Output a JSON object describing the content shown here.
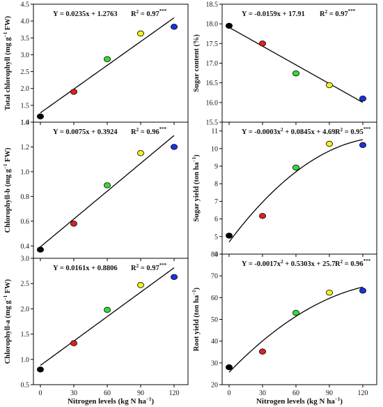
{
  "colors": {
    "point_0": "#000000",
    "point_30": "#e02020",
    "point_60": "#33dd33",
    "point_90": "#f4f020",
    "point_120": "#1a33dd",
    "line": "#000000"
  },
  "x_axis_label": {
    "main": "Nitrogen levels (kg N ha",
    "exp": "−1",
    "close": ")"
  },
  "chart_data": [
    {
      "id": "total-chlorophyll",
      "type": "scatter",
      "fit": "linear",
      "coef": [
        1.2763,
        0.0235
      ],
      "ylabel": {
        "main": "Total chlorophyll (mg g",
        "exp": "−1",
        "close": " FW)"
      },
      "equation": {
        "parts": [
          "Y = 0.0235x + 1.2763"
        ]
      },
      "r2": {
        "label": "R",
        "sup": "2",
        "rest": " = 0.97",
        "stars": "***"
      },
      "xlim": [
        0,
        120
      ],
      "ylim": [
        1.0,
        4.5
      ],
      "xticks": [
        0,
        30,
        60,
        90,
        120
      ],
      "yticks": [
        "1.0",
        "1.5",
        "2.0",
        "2.5",
        "3.0",
        "3.5",
        "4.0",
        "4.5"
      ],
      "x": [
        0,
        30,
        60,
        90,
        120
      ],
      "y": [
        1.17,
        1.9,
        2.87,
        3.63,
        3.83
      ]
    },
    {
      "id": "sugar-content",
      "type": "scatter",
      "fit": "linear",
      "coef": [
        17.91,
        -0.0159
      ],
      "ylabel": {
        "main": "Sugar content (%)",
        "exp": "",
        "close": ""
      },
      "equation": {
        "parts": [
          "Y = -0.0159x + 17.91"
        ]
      },
      "r2": {
        "label": "R",
        "sup": "2",
        "rest": " = 0.97",
        "stars": "***"
      },
      "xlim": [
        0,
        120
      ],
      "ylim": [
        15.5,
        18.5
      ],
      "xticks": [
        0,
        30,
        60,
        90,
        120
      ],
      "yticks": [
        "15.5",
        "16.0",
        "16.5",
        "17.0",
        "17.5",
        "18.0",
        "18.5"
      ],
      "x": [
        0,
        30,
        60,
        90,
        120
      ],
      "y": [
        17.95,
        17.5,
        16.74,
        16.44,
        16.1
      ]
    },
    {
      "id": "chlorophyll-b",
      "type": "scatter",
      "fit": "linear",
      "coef": [
        0.3924,
        0.0075
      ],
      "ylabel": {
        "main": "Chlorophyll-b (mg g",
        "exp": "−1",
        "close": " FW)"
      },
      "equation": {
        "parts": [
          "Y = 0.0075x + 0.3924"
        ]
      },
      "r2": {
        "label": "R",
        "sup": "2",
        "rest": " = 0.96",
        "stars": "***"
      },
      "xlim": [
        0,
        120
      ],
      "ylim": [
        0.3,
        1.4
      ],
      "xticks": [
        0,
        30,
        60,
        90,
        120
      ],
      "yticks": [
        "0.4",
        "0.6",
        "0.8",
        "1.0",
        "1.2",
        "1.4"
      ],
      "x": [
        0,
        30,
        60,
        90,
        120
      ],
      "y": [
        0.37,
        0.58,
        0.89,
        1.15,
        1.2
      ]
    },
    {
      "id": "sugar-yield",
      "type": "scatter",
      "fit": "quadratic",
      "coef": [
        4.69,
        0.0845,
        -0.0003
      ],
      "ylabel": {
        "main": "Sugar yield (ton ha",
        "exp": "−1",
        "close": ")"
      },
      "equation": {
        "parts": [
          "Y = -0.0003x",
          "2",
          " + 0.0845x + 4.69"
        ]
      },
      "r2": {
        "label": "R",
        "sup": "2",
        "rest": " = 0.95",
        "stars": "***"
      },
      "xlim": [
        0,
        120
      ],
      "ylim": [
        4,
        11.5
      ],
      "xticks": [
        0,
        30,
        60,
        90,
        120
      ],
      "yticks": [
        "4",
        "5",
        "6",
        "7",
        "8",
        "9",
        "10",
        "11"
      ],
      "x": [
        0,
        30,
        60,
        90,
        120
      ],
      "y": [
        5.05,
        6.17,
        8.92,
        10.27,
        10.2
      ]
    },
    {
      "id": "chlorophyll-a",
      "type": "scatter",
      "fit": "linear",
      "coef": [
        0.8806,
        0.0161
      ],
      "ylabel": {
        "main": "Chlorophyll-a (mg g",
        "exp": "−1",
        "close": " FW)"
      },
      "equation": {
        "parts": [
          "Y = 0.0161x + 0.8806"
        ]
      },
      "r2": {
        "label": "R",
        "sup": "2",
        "rest": " = 0.97",
        "stars": "***"
      },
      "xlim": [
        0,
        120
      ],
      "ylim": [
        0.5,
        3.0
      ],
      "xticks": [
        0,
        30,
        60,
        90,
        120
      ],
      "yticks": [
        "0.5",
        "1.0",
        "1.5",
        "2.0",
        "2.5",
        "3.0"
      ],
      "x": [
        0,
        30,
        60,
        90,
        120
      ],
      "y": [
        0.8,
        1.32,
        1.98,
        2.47,
        2.63
      ]
    },
    {
      "id": "root-yield",
      "type": "scatter",
      "fit": "quadratic",
      "coef": [
        25.7,
        0.5303,
        -0.0017
      ],
      "ylabel": {
        "main": "Root yield (ton ha",
        "exp": "−1",
        "close": ")"
      },
      "equation": {
        "parts": [
          "Y = -0.0017x",
          "2",
          " + 0.5303x + 25.7"
        ]
      },
      "r2": {
        "label": "R",
        "sup": "2",
        "rest": " = 0.96",
        "stars": "***"
      },
      "xlim": [
        0,
        120
      ],
      "ylim": [
        20,
        80
      ],
      "xticks": [
        0,
        30,
        60,
        90,
        120
      ],
      "yticks": [
        "20",
        "30",
        "40",
        "50",
        "60",
        "70",
        "80"
      ],
      "x": [
        0,
        30,
        60,
        90,
        120
      ],
      "y": [
        28,
        35.2,
        53,
        62.3,
        63.2
      ]
    }
  ]
}
